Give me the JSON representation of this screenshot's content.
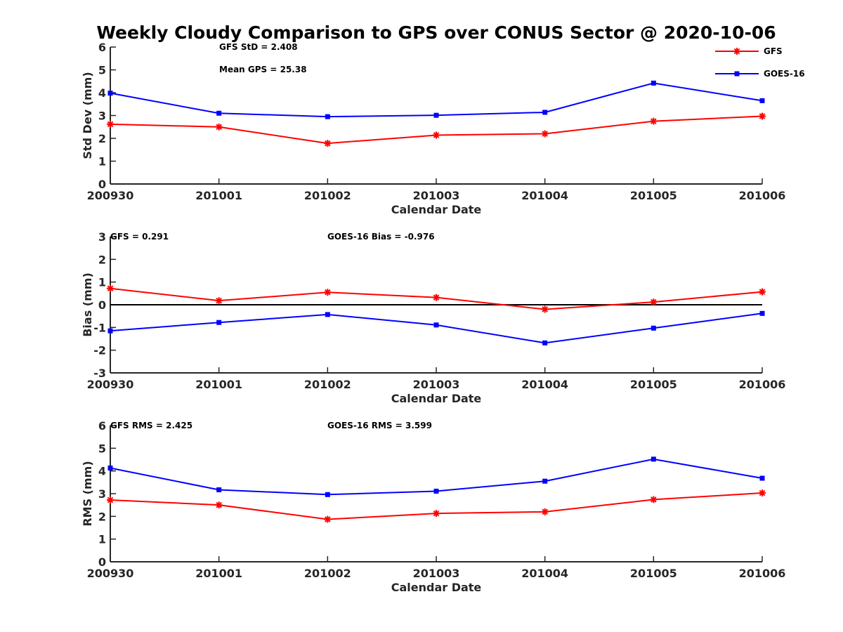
{
  "title": "Weekly Cloudy Comparison to GPS over CONUS Sector @ 2020-10-06",
  "legend": {
    "placement": "top-right",
    "entries": [
      {
        "name": "GFS",
        "color": "#ff0000",
        "marker": "asterisk"
      },
      {
        "name": "GOES-16",
        "color": "#0000ff",
        "marker": "square"
      }
    ]
  },
  "chart_data": [
    {
      "type": "line",
      "categories": [
        "200930",
        "201001",
        "201002",
        "201003",
        "201004",
        "201005",
        "201006"
      ],
      "xlabel": "Calendar Date",
      "ylabel": "Std Dev (mm)",
      "ylim": [
        0,
        6
      ],
      "yticks": [
        0,
        1,
        2,
        3,
        4,
        5,
        6
      ],
      "grid": false,
      "annotations": [
        "GFS StD = 2.408",
        "Mean GPS = 25.38"
      ],
      "series": [
        {
          "name": "GFS",
          "color": "#ff0000",
          "values": [
            2.62,
            2.5,
            1.78,
            2.14,
            2.2,
            2.75,
            2.97
          ]
        },
        {
          "name": "GOES-16",
          "color": "#0000ff",
          "values": [
            3.98,
            3.1,
            2.95,
            3.01,
            3.14,
            4.42,
            3.65
          ]
        }
      ]
    },
    {
      "type": "line",
      "categories": [
        "200930",
        "201001",
        "201002",
        "201003",
        "201004",
        "201005",
        "201006"
      ],
      "xlabel": "Calendar Date",
      "ylabel": "Bias (mm)",
      "ylim": [
        -3,
        3
      ],
      "yticks": [
        -3,
        -2,
        -1,
        0,
        1,
        2,
        3
      ],
      "grid": false,
      "zero_line": true,
      "annotations": [
        "GFS = 0.291",
        "GOES-16 Bias  = -0.976"
      ],
      "series": [
        {
          "name": "GFS",
          "color": "#ff0000",
          "values": [
            0.72,
            0.18,
            0.55,
            0.32,
            -0.2,
            0.12,
            0.57
          ]
        },
        {
          "name": "GOES-16",
          "color": "#0000ff",
          "values": [
            -1.15,
            -0.78,
            -0.43,
            -0.89,
            -1.68,
            -1.03,
            -0.38
          ]
        }
      ]
    },
    {
      "type": "line",
      "categories": [
        "200930",
        "201001",
        "201002",
        "201003",
        "201004",
        "201005",
        "201006"
      ],
      "xlabel": "Calendar Date",
      "ylabel": "RMS (mm)",
      "ylim": [
        0,
        6
      ],
      "yticks": [
        0,
        1,
        2,
        3,
        4,
        5,
        6
      ],
      "grid": false,
      "annotations": [
        "GFS RMS = 2.425",
        "GOES-16 RMS = 3.599"
      ],
      "series": [
        {
          "name": "GFS",
          "color": "#ff0000",
          "values": [
            2.72,
            2.5,
            1.87,
            2.13,
            2.2,
            2.74,
            3.03
          ]
        },
        {
          "name": "GOES-16",
          "color": "#0000ff",
          "values": [
            4.13,
            3.17,
            2.96,
            3.11,
            3.55,
            4.52,
            3.68
          ]
        }
      ]
    }
  ]
}
